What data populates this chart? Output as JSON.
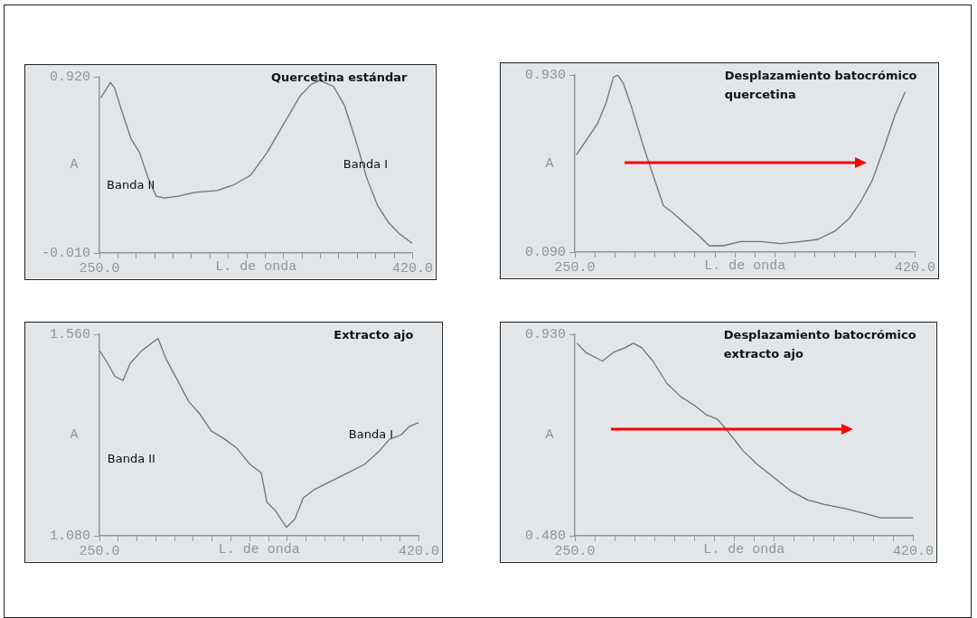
{
  "chart_data": [
    {
      "type": "line",
      "title": "Quercetina estándar",
      "xlabel": "L. de onda",
      "ylabel": "A",
      "color": "#6e7275",
      "marker": "none",
      "grid": false,
      "x": [
        250.8,
        256,
        258.3,
        262.8,
        267.3,
        271.8,
        276.3,
        280.8,
        285.3,
        292.9,
        301.9,
        313.9,
        323,
        332,
        341,
        350,
        359,
        365,
        369.6,
        377,
        383,
        389,
        395,
        401,
        407,
        413,
        420
      ],
      "values": [
        0.81,
        0.89,
        0.86,
        0.72,
        0.59,
        0.52,
        0.39,
        0.29,
        0.28,
        0.29,
        0.31,
        0.32,
        0.35,
        0.4,
        0.52,
        0.67,
        0.82,
        0.88,
        0.9,
        0.87,
        0.77,
        0.59,
        0.39,
        0.24,
        0.15,
        0.09,
        0.04
      ],
      "xlim": [
        250,
        420
      ],
      "xticks": [
        {
          "value": 250,
          "label": "250.0"
        },
        {
          "value": 260,
          "label": null
        },
        {
          "value": 270,
          "label": null
        },
        {
          "value": 280,
          "label": null
        },
        {
          "value": 290,
          "label": null
        },
        {
          "value": 300,
          "label": null
        },
        {
          "value": 310,
          "label": null
        },
        {
          "value": 320,
          "label": null
        },
        {
          "value": 330,
          "label": null
        },
        {
          "value": 340,
          "label": null
        },
        {
          "value": 350,
          "label": null
        },
        {
          "value": 360,
          "label": null
        },
        {
          "value": 370,
          "label": null
        },
        {
          "value": 380,
          "label": null
        },
        {
          "value": 390,
          "label": null
        },
        {
          "value": 400,
          "label": null
        },
        {
          "value": 410,
          "label": null
        },
        {
          "value": 420,
          "label": "420.0"
        }
      ],
      "ylim": [
        -0.01,
        0.92
      ],
      "yticks": [
        {
          "value": -0.01,
          "label": "-0.010"
        },
        {
          "value": 0.92,
          "label": "0.920"
        }
      ],
      "annotations": [
        "Banda II",
        "Banda I"
      ]
    },
    {
      "type": "line",
      "title": "Desplazamiento batocrómico quercetina",
      "xlabel": "L. de onda",
      "ylabel": "A",
      "color": "#6e7275",
      "marker": "none",
      "grid": false,
      "x": [
        250.7,
        255.7,
        261.4,
        265.7,
        269.3,
        271.4,
        274.3,
        278.6,
        284.3,
        290,
        294.3,
        298.6,
        305.7,
        312.9,
        317.1,
        324.3,
        332.9,
        342.9,
        352.9,
        362.9,
        371.4,
        380,
        387.1,
        392.9,
        398.6,
        404.3,
        410,
        415
      ],
      "values": [
        0.55,
        0.62,
        0.7,
        0.8,
        0.92,
        0.93,
        0.89,
        0.77,
        0.59,
        0.43,
        0.31,
        0.28,
        0.22,
        0.16,
        0.12,
        0.12,
        0.14,
        0.14,
        0.13,
        0.14,
        0.15,
        0.19,
        0.25,
        0.33,
        0.43,
        0.58,
        0.74,
        0.85
      ],
      "xlim": [
        250,
        420
      ],
      "xticks": [
        {
          "value": 250,
          "label": "250.0"
        },
        {
          "value": 260,
          "label": null
        },
        {
          "value": 270,
          "label": null
        },
        {
          "value": 280,
          "label": null
        },
        {
          "value": 290,
          "label": null
        },
        {
          "value": 300,
          "label": null
        },
        {
          "value": 310,
          "label": null
        },
        {
          "value": 320,
          "label": null
        },
        {
          "value": 330,
          "label": null
        },
        {
          "value": 340,
          "label": null
        },
        {
          "value": 350,
          "label": null
        },
        {
          "value": 360,
          "label": null
        },
        {
          "value": 370,
          "label": null
        },
        {
          "value": 380,
          "label": null
        },
        {
          "value": 390,
          "label": null
        },
        {
          "value": 400,
          "label": null
        },
        {
          "value": 410,
          "label": null
        },
        {
          "value": 420,
          "label": "420.0"
        }
      ],
      "ylim": [
        0.09,
        0.93
      ],
      "yticks": [
        {
          "value": 0.09,
          "label": "0.090"
        },
        {
          "value": 0.93,
          "label": "0.930"
        }
      ]
    },
    {
      "type": "line",
      "title": "Extracto ajo",
      "xlabel": "L. de onda",
      "ylabel": "A",
      "color": "#6e7275",
      "marker": "none",
      "grid": false,
      "x": [
        250.3,
        254.5,
        258.2,
        262.6,
        266.3,
        272.3,
        278.2,
        281.2,
        285.6,
        291.6,
        297.5,
        303.5,
        309.4,
        316.8,
        322.8,
        330.2,
        336.1,
        339.1,
        343.6,
        349.5,
        354,
        358.4,
        364.3,
        373.2,
        382.1,
        391,
        398.5,
        404.4,
        410.4,
        414.8,
        420
      ],
      "values": [
        1.52,
        1.49,
        1.46,
        1.45,
        1.49,
        1.52,
        1.54,
        1.55,
        1.5,
        1.45,
        1.4,
        1.37,
        1.33,
        1.31,
        1.29,
        1.25,
        1.23,
        1.16,
        1.14,
        1.1,
        1.12,
        1.17,
        1.19,
        1.21,
        1.23,
        1.25,
        1.28,
        1.31,
        1.32,
        1.34,
        1.35
      ],
      "xlim": [
        250,
        420
      ],
      "xticks": [
        {
          "value": 250,
          "label": "250.0"
        },
        {
          "value": 260,
          "label": null
        },
        {
          "value": 270,
          "label": null
        },
        {
          "value": 280,
          "label": null
        },
        {
          "value": 290,
          "label": null
        },
        {
          "value": 300,
          "label": null
        },
        {
          "value": 310,
          "label": null
        },
        {
          "value": 320,
          "label": null
        },
        {
          "value": 330,
          "label": null
        },
        {
          "value": 340,
          "label": null
        },
        {
          "value": 350,
          "label": null
        },
        {
          "value": 360,
          "label": null
        },
        {
          "value": 370,
          "label": null
        },
        {
          "value": 380,
          "label": null
        },
        {
          "value": 390,
          "label": null
        },
        {
          "value": 400,
          "label": null
        },
        {
          "value": 410,
          "label": null
        },
        {
          "value": 420,
          "label": "420.0"
        }
      ],
      "ylim": [
        1.08,
        1.56
      ],
      "yticks": [
        {
          "value": 1.08,
          "label": "1.080"
        },
        {
          "value": 1.56,
          "label": "1.560"
        }
      ],
      "annotations": [
        "Banda II",
        "Banda I"
      ]
    },
    {
      "type": "line",
      "title": "Desplazamiento batocrómico extracto ajo",
      "xlabel": "L. de onda",
      "ylabel": "A",
      "color": "#6e7275",
      "marker": "none",
      "grid": false,
      "x": [
        251.1,
        255.4,
        259.6,
        263.8,
        269.5,
        275.2,
        279.4,
        283.6,
        289.3,
        296.3,
        303.4,
        310.5,
        316.1,
        321.8,
        327.4,
        334.5,
        341.5,
        350,
        358.5,
        367,
        375.5,
        386.8,
        395.3,
        403.7,
        412.2,
        420
      ],
      "values": [
        0.91,
        0.89,
        0.88,
        0.87,
        0.89,
        0.9,
        0.91,
        0.9,
        0.87,
        0.82,
        0.79,
        0.77,
        0.75,
        0.74,
        0.71,
        0.67,
        0.64,
        0.61,
        0.58,
        0.56,
        0.55,
        0.54,
        0.53,
        0.52,
        0.52,
        0.52
      ],
      "xlim": [
        250,
        420
      ],
      "xticks": [
        {
          "value": 250,
          "label": "250.0"
        },
        {
          "value": 260,
          "label": null
        },
        {
          "value": 270,
          "label": null
        },
        {
          "value": 280,
          "label": null
        },
        {
          "value": 290,
          "label": null
        },
        {
          "value": 300,
          "label": null
        },
        {
          "value": 310,
          "label": null
        },
        {
          "value": 320,
          "label": null
        },
        {
          "value": 330,
          "label": null
        },
        {
          "value": 340,
          "label": null
        },
        {
          "value": 350,
          "label": null
        },
        {
          "value": 360,
          "label": null
        },
        {
          "value": 370,
          "label": null
        },
        {
          "value": 380,
          "label": null
        },
        {
          "value": 390,
          "label": null
        },
        {
          "value": 400,
          "label": null
        },
        {
          "value": 410,
          "label": null
        },
        {
          "value": 420,
          "label": "420.0"
        }
      ],
      "ylim": [
        0.48,
        0.93
      ],
      "yticks": [
        {
          "value": 0.48,
          "label": "0.480"
        },
        {
          "value": 0.93,
          "label": "0.930"
        }
      ]
    }
  ]
}
